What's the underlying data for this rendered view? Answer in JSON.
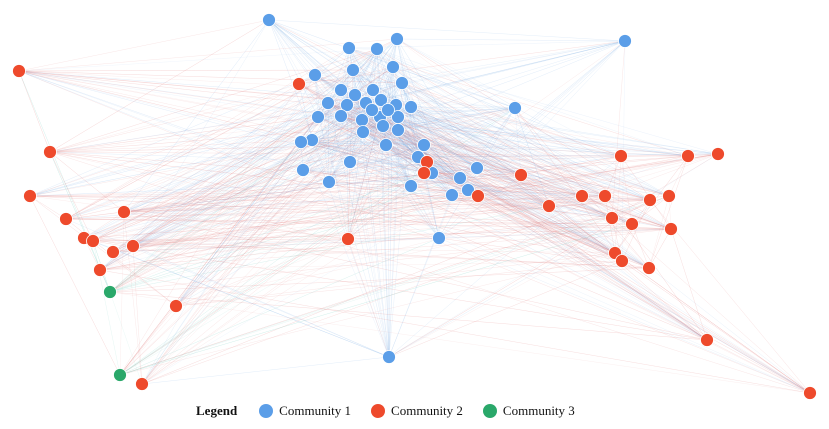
{
  "legend": {
    "title": "Legend",
    "items": [
      {
        "label": "Community 1",
        "color": "#5b9ee8"
      },
      {
        "label": "Community 2",
        "color": "#ee4a2c"
      },
      {
        "label": "Community 3",
        "color": "#2aa86a"
      }
    ]
  },
  "colors": {
    "edge_red": "#e07a7a",
    "edge_blue": "#86b4e6",
    "edge_teal": "#5cc4b4"
  }
}
